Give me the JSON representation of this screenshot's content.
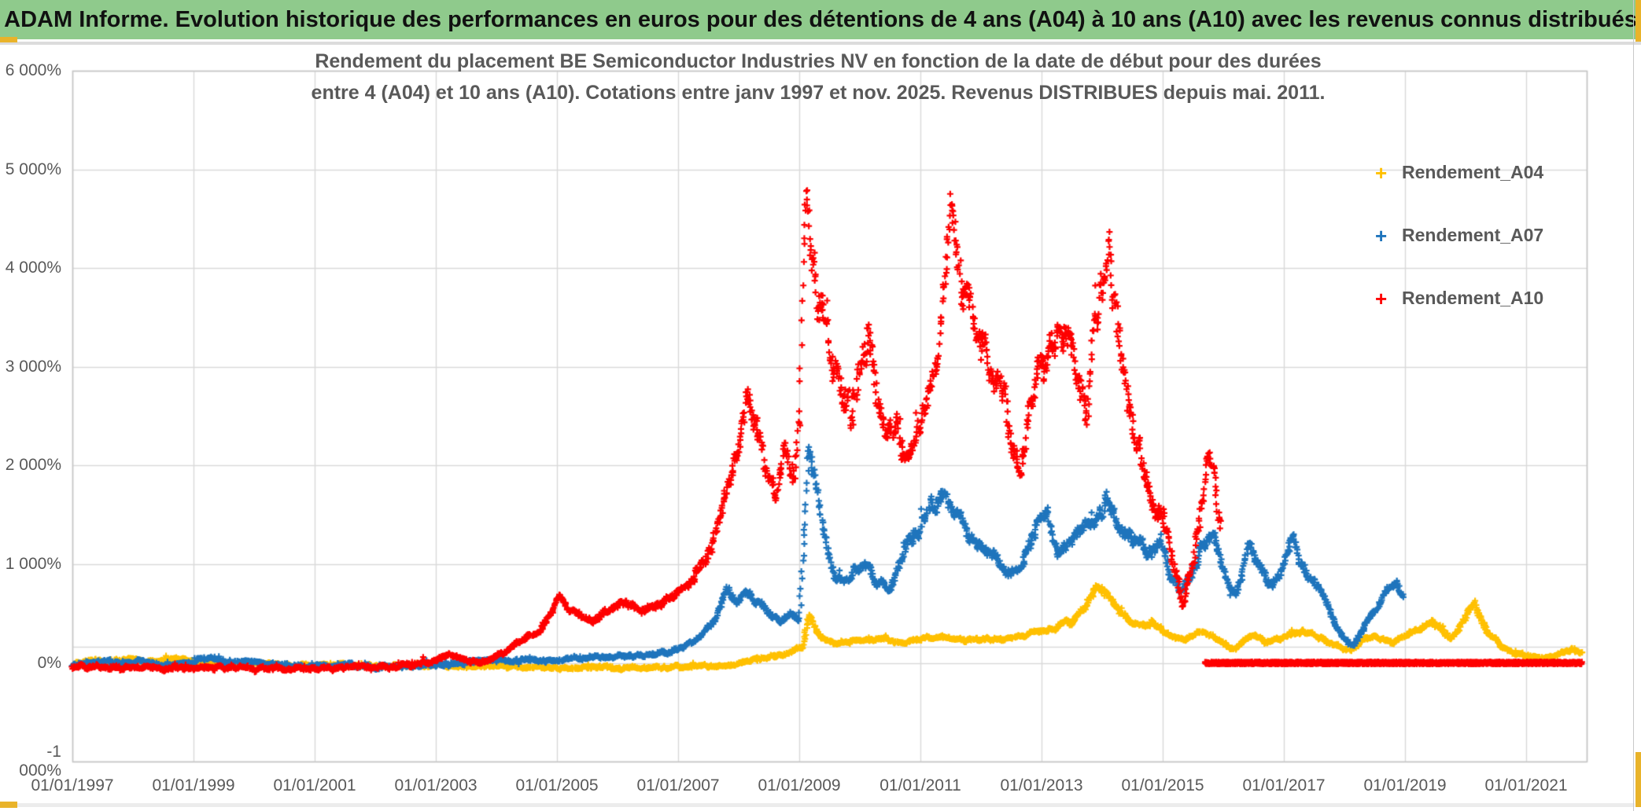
{
  "header": {
    "title": "ADAM Informe. Evolution historique des performances en euros pour des détentions de 4 ans (A04) à 10 ans (A10) avec les revenus connus distribués",
    "bg_color": "#8FCA8C",
    "accent_color": "#E9B32A"
  },
  "chart_data": {
    "type": "scatter",
    "marker": "plus",
    "title": [
      "Rendement du placement BE Semiconductor Industries NV en fonction de la date de début pour des durées",
      "entre 4 (A04) et 10 ans (A10). Cotations entre janv 1997 et nov. 2025. Revenus DISTRIBUES depuis mai. 2011."
    ],
    "x_axis": {
      "tick_labels": [
        "01/01/1997",
        "01/01/1999",
        "01/01/2001",
        "01/01/2003",
        "01/01/2005",
        "01/01/2007",
        "01/01/2009",
        "01/01/2011",
        "01/01/2013",
        "01/01/2015",
        "01/01/2017",
        "01/01/2019",
        "01/01/2021"
      ],
      "tick_years": [
        1997,
        1999,
        2001,
        2003,
        2005,
        2007,
        2009,
        2011,
        2013,
        2015,
        2017,
        2019,
        2021
      ],
      "range_years": [
        1997,
        2022.05
      ],
      "grid": true
    },
    "y_axis": {
      "tick_labels": [
        "6 000%",
        "5 000%",
        "4 000%",
        "3 000%",
        "2 000%",
        "1 000%",
        "0%",
        "-1 000%"
      ],
      "tick_values": [
        6000,
        5000,
        4000,
        3000,
        2000,
        1000,
        0,
        -1000
      ],
      "range": [
        -1000,
        6000
      ],
      "grid": true,
      "crossing_line_value": 165
    },
    "grid_color": "#D9D9D9",
    "axis_text_color": "#595959",
    "legend_position": "right",
    "series": [
      {
        "name": "Rendement_A04",
        "color": "#FFC000",
        "seed": 11,
        "noise_frac": 0.05,
        "noise_min": 13,
        "end_year": 2021.92,
        "keypoints": [
          [
            1997.0,
            -15
          ],
          [
            1997.35,
            40
          ],
          [
            1997.6,
            5
          ],
          [
            1997.95,
            55
          ],
          [
            1998.2,
            5
          ],
          [
            1998.45,
            25
          ],
          [
            1998.7,
            50
          ],
          [
            1999.0,
            5
          ],
          [
            1999.5,
            -10
          ],
          [
            2000.0,
            0
          ],
          [
            2000.5,
            -20
          ],
          [
            2001.0,
            -25
          ],
          [
            2001.5,
            -20
          ],
          [
            2002.0,
            -30
          ],
          [
            2002.5,
            -25
          ],
          [
            2003.0,
            -20
          ],
          [
            2003.5,
            -35
          ],
          [
            2004.0,
            -30
          ],
          [
            2004.5,
            -45
          ],
          [
            2005.0,
            -50
          ],
          [
            2005.5,
            -55
          ],
          [
            2006.0,
            -50
          ],
          [
            2006.5,
            -45
          ],
          [
            2007.0,
            -40
          ],
          [
            2007.5,
            -35
          ],
          [
            2008.0,
            -5
          ],
          [
            2008.4,
            45
          ],
          [
            2008.8,
            95
          ],
          [
            2009.05,
            160
          ],
          [
            2009.17,
            520
          ],
          [
            2009.3,
            290
          ],
          [
            2009.45,
            215
          ],
          [
            2009.6,
            200
          ],
          [
            2009.9,
            235
          ],
          [
            2010.1,
            220
          ],
          [
            2010.35,
            255
          ],
          [
            2010.6,
            210
          ],
          [
            2010.9,
            230
          ],
          [
            2011.15,
            255
          ],
          [
            2011.4,
            270
          ],
          [
            2011.7,
            230
          ],
          [
            2012.0,
            255
          ],
          [
            2012.3,
            235
          ],
          [
            2012.6,
            265
          ],
          [
            2012.9,
            320
          ],
          [
            2013.2,
            350
          ],
          [
            2013.5,
            420
          ],
          [
            2013.75,
            620
          ],
          [
            2013.95,
            810
          ],
          [
            2014.1,
            700
          ],
          [
            2014.35,
            480
          ],
          [
            2014.6,
            370
          ],
          [
            2014.85,
            410
          ],
          [
            2015.1,
            290
          ],
          [
            2015.35,
            230
          ],
          [
            2015.6,
            330
          ],
          [
            2015.8,
            280
          ],
          [
            2016.0,
            195
          ],
          [
            2016.2,
            135
          ],
          [
            2016.45,
            290
          ],
          [
            2016.7,
            215
          ],
          [
            2016.9,
            230
          ],
          [
            2017.1,
            285
          ],
          [
            2017.35,
            330
          ],
          [
            2017.6,
            250
          ],
          [
            2017.85,
            185
          ],
          [
            2018.1,
            120
          ],
          [
            2018.3,
            230
          ],
          [
            2018.55,
            270
          ],
          [
            2018.8,
            195
          ],
          [
            2019.05,
            290
          ],
          [
            2019.25,
            340
          ],
          [
            2019.45,
            430
          ],
          [
            2019.75,
            240
          ],
          [
            2019.95,
            420
          ],
          [
            2020.15,
            610
          ],
          [
            2020.35,
            330
          ],
          [
            2020.55,
            200
          ],
          [
            2020.75,
            90
          ],
          [
            2021.0,
            70
          ],
          [
            2021.3,
            50
          ],
          [
            2021.55,
            90
          ],
          [
            2021.75,
            150
          ],
          [
            2021.92,
            105
          ]
        ]
      },
      {
        "name": "Rendement_A07",
        "color": "#1E74BC",
        "seed": 23,
        "noise_frac": 0.045,
        "noise_min": 15,
        "end_year": 2018.97,
        "keypoints": [
          [
            1997.0,
            -35
          ],
          [
            1997.4,
            15
          ],
          [
            1997.8,
            -15
          ],
          [
            1998.1,
            25
          ],
          [
            1998.5,
            -25
          ],
          [
            1999.0,
            15
          ],
          [
            1999.3,
            55
          ],
          [
            1999.6,
            15
          ],
          [
            2000.0,
            5
          ],
          [
            2000.5,
            -25
          ],
          [
            2001.0,
            -35
          ],
          [
            2001.5,
            -15
          ],
          [
            2002.0,
            -40
          ],
          [
            2002.5,
            -30
          ],
          [
            2003.0,
            -15
          ],
          [
            2003.5,
            10
          ],
          [
            2004.0,
            20
          ],
          [
            2004.5,
            35
          ],
          [
            2005.0,
            30
          ],
          [
            2005.5,
            50
          ],
          [
            2006.0,
            60
          ],
          [
            2006.5,
            85
          ],
          [
            2007.0,
            135
          ],
          [
            2007.3,
            230
          ],
          [
            2007.6,
            430
          ],
          [
            2007.82,
            760
          ],
          [
            2007.95,
            600
          ],
          [
            2008.15,
            700
          ],
          [
            2008.35,
            590
          ],
          [
            2008.55,
            470
          ],
          [
            2008.7,
            415
          ],
          [
            2008.85,
            530
          ],
          [
            2009.0,
            430
          ],
          [
            2009.17,
            2230
          ],
          [
            2009.3,
            1600
          ],
          [
            2009.45,
            1180
          ],
          [
            2009.6,
            890
          ],
          [
            2009.75,
            790
          ],
          [
            2009.95,
            940
          ],
          [
            2010.1,
            1010
          ],
          [
            2010.3,
            840
          ],
          [
            2010.5,
            790
          ],
          [
            2010.7,
            1080
          ],
          [
            2010.9,
            1290
          ],
          [
            2011.1,
            1490
          ],
          [
            2011.35,
            1730
          ],
          [
            2011.5,
            1600
          ],
          [
            2011.65,
            1440
          ],
          [
            2011.8,
            1290
          ],
          [
            2012.0,
            1190
          ],
          [
            2012.2,
            1090
          ],
          [
            2012.4,
            940
          ],
          [
            2012.6,
            890
          ],
          [
            2012.8,
            1140
          ],
          [
            2013.05,
            1560
          ],
          [
            2013.25,
            1090
          ],
          [
            2013.5,
            1290
          ],
          [
            2013.75,
            1390
          ],
          [
            2013.95,
            1490
          ],
          [
            2014.1,
            1670
          ],
          [
            2014.3,
            1390
          ],
          [
            2014.5,
            1240
          ],
          [
            2014.75,
            1090
          ],
          [
            2014.95,
            1190
          ],
          [
            2015.15,
            890
          ],
          [
            2015.3,
            730
          ],
          [
            2015.5,
            990
          ],
          [
            2015.7,
            1190
          ],
          [
            2015.85,
            1280
          ],
          [
            2016.05,
            840
          ],
          [
            2016.2,
            680
          ],
          [
            2016.42,
            1180
          ],
          [
            2016.6,
            990
          ],
          [
            2016.8,
            730
          ],
          [
            2017.0,
            1040
          ],
          [
            2017.15,
            1230
          ],
          [
            2017.4,
            890
          ],
          [
            2017.6,
            760
          ],
          [
            2017.8,
            440
          ],
          [
            2018.0,
            250
          ],
          [
            2018.15,
            170
          ],
          [
            2018.4,
            430
          ],
          [
            2018.6,
            610
          ],
          [
            2018.85,
            830
          ],
          [
            2018.97,
            730
          ]
        ]
      },
      {
        "name": "Rendement_A10",
        "color": "#FE0000",
        "seed": 37,
        "noise_frac": 0.045,
        "noise_min": 17,
        "end_year": 2015.96,
        "keypoints": [
          [
            1997.0,
            -45
          ],
          [
            1997.5,
            -40
          ],
          [
            1998.0,
            -45
          ],
          [
            1998.5,
            -55
          ],
          [
            1999.0,
            -50
          ],
          [
            1999.5,
            -50
          ],
          [
            2000.0,
            -55
          ],
          [
            2000.5,
            -60
          ],
          [
            2001.0,
            -55
          ],
          [
            2001.5,
            -50
          ],
          [
            2002.0,
            -50
          ],
          [
            2002.4,
            -30
          ],
          [
            2002.7,
            -10
          ],
          [
            2003.0,
            40
          ],
          [
            2003.2,
            95
          ],
          [
            2003.45,
            30
          ],
          [
            2003.7,
            10
          ],
          [
            2003.9,
            45
          ],
          [
            2004.1,
            105
          ],
          [
            2004.3,
            185
          ],
          [
            2004.5,
            255
          ],
          [
            2004.7,
            330
          ],
          [
            2004.9,
            510
          ],
          [
            2005.05,
            655
          ],
          [
            2005.2,
            555
          ],
          [
            2005.4,
            480
          ],
          [
            2005.6,
            430
          ],
          [
            2005.8,
            525
          ],
          [
            2006.0,
            585
          ],
          [
            2006.2,
            605
          ],
          [
            2006.4,
            540
          ],
          [
            2006.6,
            585
          ],
          [
            2006.8,
            655
          ],
          [
            2007.0,
            705
          ],
          [
            2007.2,
            830
          ],
          [
            2007.4,
            1010
          ],
          [
            2007.6,
            1310
          ],
          [
            2007.75,
            1610
          ],
          [
            2007.9,
            1910
          ],
          [
            2008.0,
            2120
          ],
          [
            2008.15,
            2660
          ],
          [
            2008.3,
            2480
          ],
          [
            2008.45,
            1920
          ],
          [
            2008.6,
            1660
          ],
          [
            2008.75,
            2110
          ],
          [
            2008.9,
            1860
          ],
          [
            2009.0,
            2420
          ],
          [
            2009.1,
            4960
          ],
          [
            2009.2,
            4300
          ],
          [
            2009.3,
            3690
          ],
          [
            2009.42,
            3420
          ],
          [
            2009.55,
            2980
          ],
          [
            2009.7,
            2880
          ],
          [
            2009.85,
            2540
          ],
          [
            2010.0,
            2920
          ],
          [
            2010.15,
            3240
          ],
          [
            2010.3,
            2690
          ],
          [
            2010.45,
            2290
          ],
          [
            2010.6,
            2460
          ],
          [
            2010.75,
            2060
          ],
          [
            2010.9,
            2310
          ],
          [
            2011.05,
            2520
          ],
          [
            2011.2,
            2940
          ],
          [
            2011.35,
            3440
          ],
          [
            2011.5,
            4660
          ],
          [
            2011.65,
            3990
          ],
          [
            2011.8,
            3710
          ],
          [
            2011.95,
            3410
          ],
          [
            2012.1,
            3090
          ],
          [
            2012.25,
            2890
          ],
          [
            2012.4,
            2690
          ],
          [
            2012.5,
            2210
          ],
          [
            2012.65,
            1960
          ],
          [
            2012.8,
            2510
          ],
          [
            2012.95,
            2910
          ],
          [
            2013.1,
            3110
          ],
          [
            2013.3,
            3310
          ],
          [
            2013.45,
            3410
          ],
          [
            2013.6,
            2910
          ],
          [
            2013.75,
            2510
          ],
          [
            2013.87,
            3410
          ],
          [
            2014.0,
            3810
          ],
          [
            2014.12,
            4230
          ],
          [
            2014.25,
            3420
          ],
          [
            2014.4,
            2610
          ],
          [
            2014.55,
            2410
          ],
          [
            2014.7,
            1910
          ],
          [
            2014.85,
            1610
          ],
          [
            2015.0,
            1530
          ],
          [
            2015.15,
            1090
          ],
          [
            2015.33,
            570
          ],
          [
            2015.45,
            910
          ],
          [
            2015.6,
            1410
          ],
          [
            2015.77,
            2260
          ],
          [
            2015.88,
            1690
          ],
          [
            2015.96,
            1330
          ]
        ],
        "flat_segment": {
          "from": 2015.7,
          "to": 2021.92,
          "value": 0
        }
      }
    ]
  }
}
